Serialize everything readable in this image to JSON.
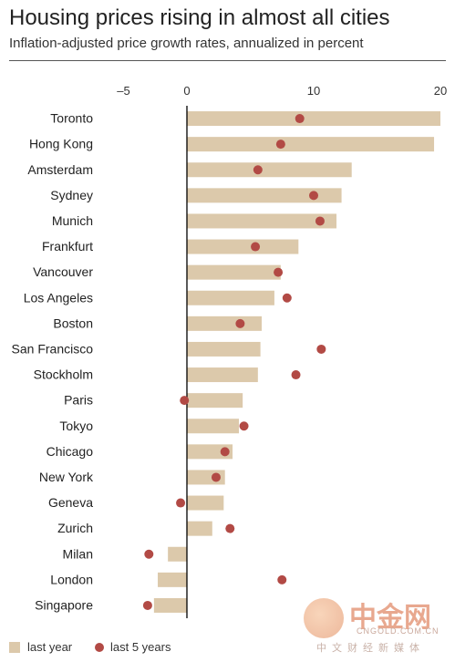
{
  "title": "Housing prices rising in almost all cities",
  "subtitle": "Inflation-adjusted price growth rates, annualized in percent",
  "colors": {
    "bar": "#dcc9ab",
    "dot": "#b24a45",
    "axis": "#000000"
  },
  "watermark": {
    "main": "中金网",
    "url": "CNGOLD.COM.CN",
    "cn": "中文财经新媒体"
  },
  "chart_data": {
    "type": "bar",
    "orientation": "horizontal",
    "categories": [
      "Toronto",
      "Hong Kong",
      "Amsterdam",
      "Sydney",
      "Munich",
      "Frankfurt",
      "Vancouver",
      "Los Angeles",
      "Boston",
      "San Francisco",
      "Stockholm",
      "Paris",
      "Tokyo",
      "Chicago",
      "New York",
      "Geneva",
      "Zurich",
      "Milan",
      "London",
      "Singapore"
    ],
    "series": [
      {
        "name": "last year",
        "type": "bar",
        "values": [
          20.0,
          19.5,
          13.0,
          12.2,
          11.8,
          8.8,
          7.4,
          6.9,
          5.9,
          5.8,
          5.6,
          4.4,
          4.1,
          3.6,
          3.0,
          2.9,
          2.0,
          -1.5,
          -2.3,
          -2.6
        ]
      },
      {
        "name": "last 5 years",
        "type": "dot",
        "values": [
          8.9,
          7.4,
          5.6,
          10.0,
          10.5,
          5.4,
          7.2,
          7.9,
          4.2,
          10.6,
          8.6,
          -0.2,
          4.5,
          3.0,
          2.3,
          -0.5,
          3.4,
          -3.0,
          7.5,
          -3.1
        ]
      }
    ],
    "xlim": [
      -5.5,
      20.5
    ],
    "xticks": [
      -5,
      0,
      10,
      20
    ],
    "xtick_labels": [
      "–5",
      "0",
      "10",
      "20"
    ],
    "legend": "bottom-left",
    "grid": false
  }
}
